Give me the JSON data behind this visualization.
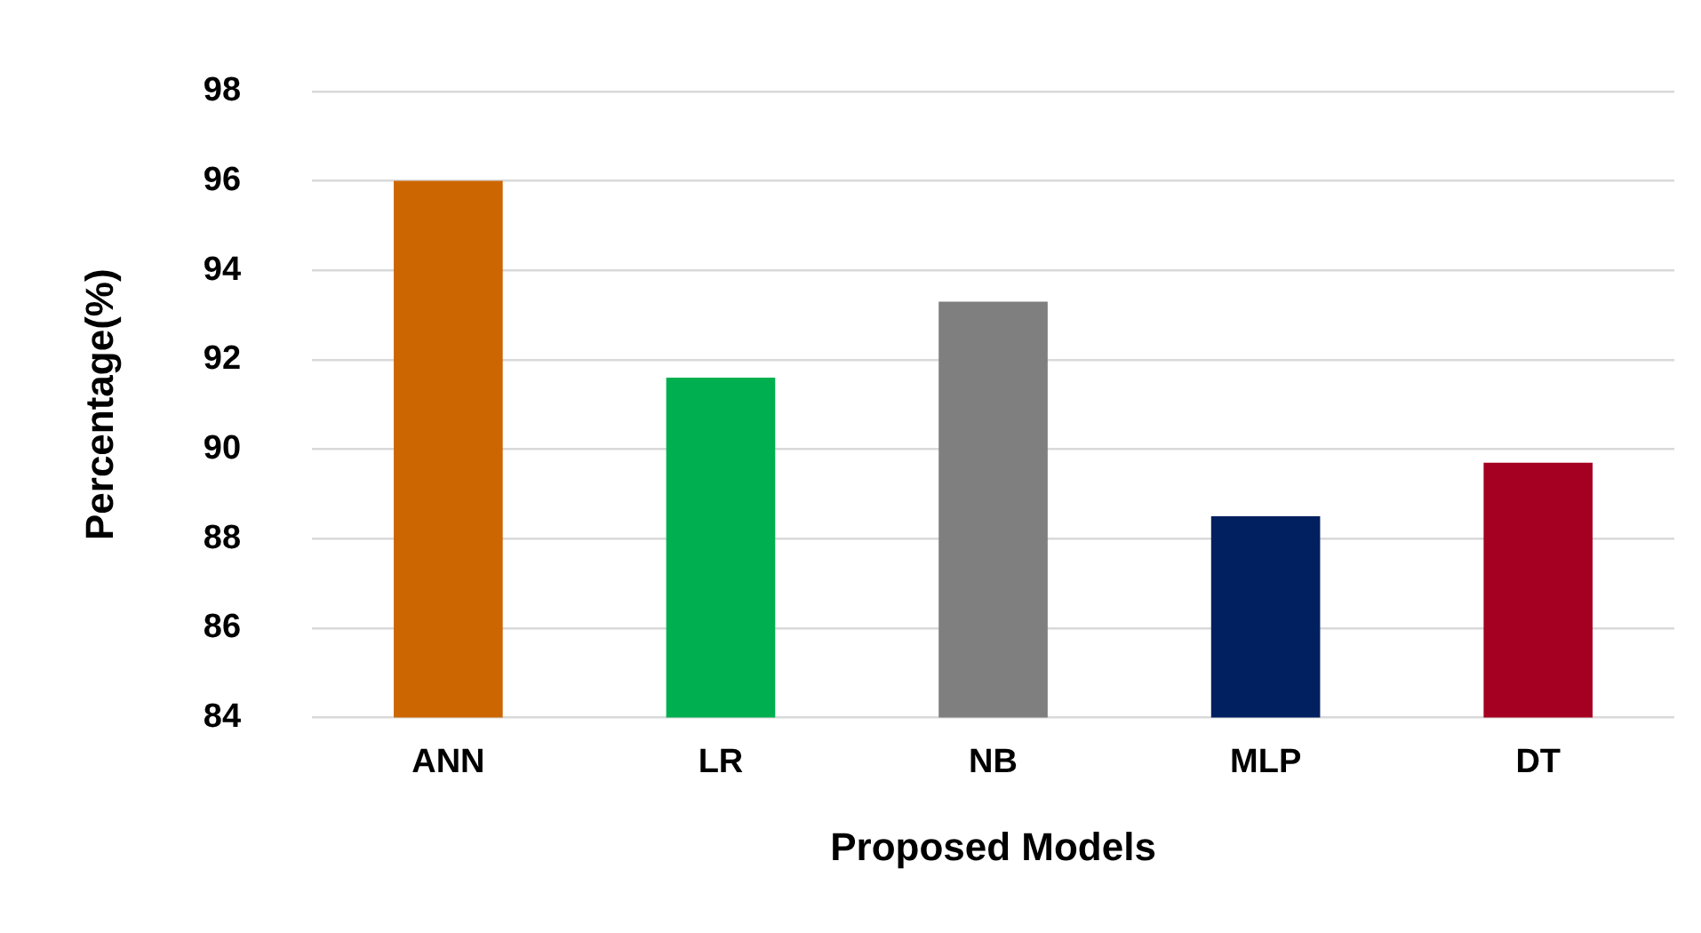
{
  "chart_data": {
    "type": "bar",
    "xlabel": "Proposed Models",
    "ylabel": "Percentage(%)",
    "categories": [
      "ANN",
      "LR",
      "NB",
      "MLP",
      "DT"
    ],
    "values": [
      96,
      91.6,
      93.3,
      88.5,
      89.7
    ],
    "colors": [
      "#cc6600",
      "#00b050",
      "#7f7f7f",
      "#002060",
      "#a50021"
    ],
    "ylim": [
      84,
      98
    ],
    "yticks": [
      84,
      86,
      88,
      90,
      92,
      94,
      96,
      98
    ],
    "grid": "y",
    "legend": false
  }
}
